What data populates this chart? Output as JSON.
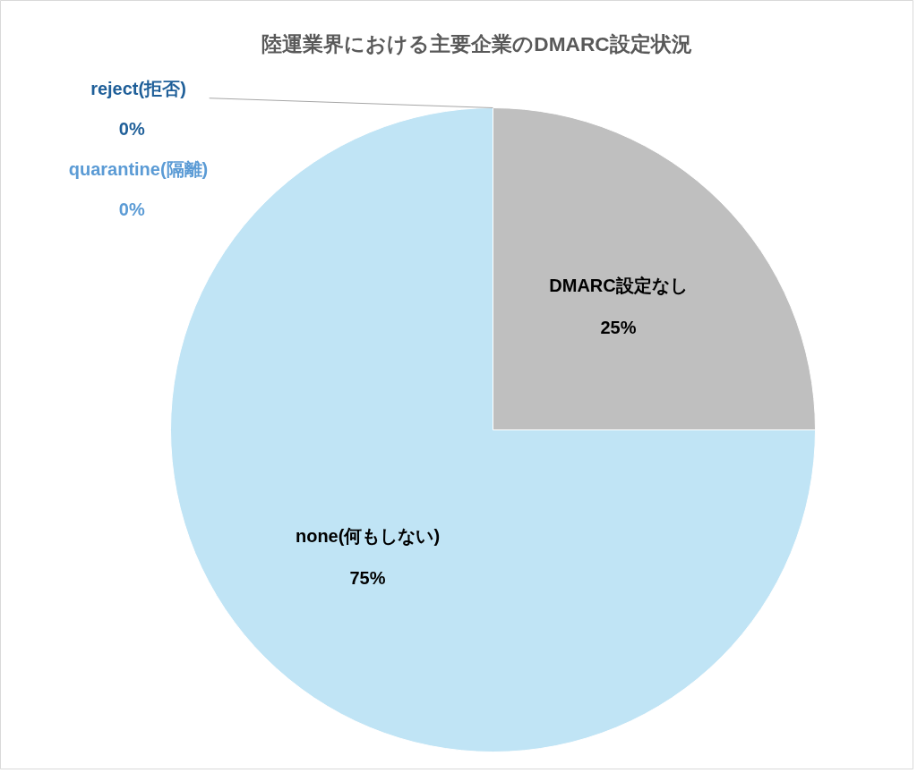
{
  "chart_data": {
    "type": "pie",
    "title": "陸運業界における主要企業のDMARC設定状況",
    "categories": [
      "DMARC設定なし",
      "none(何もしない)",
      "quarantine(隔離)",
      "reject(拒否)"
    ],
    "values": [
      25,
      75,
      0,
      0
    ],
    "colors": [
      "#bfbfbf",
      "#c0e4f5",
      "#5b9bd5",
      "#1f5f99"
    ],
    "value_labels": [
      "25%",
      "75%",
      "0%",
      "0%"
    ]
  }
}
